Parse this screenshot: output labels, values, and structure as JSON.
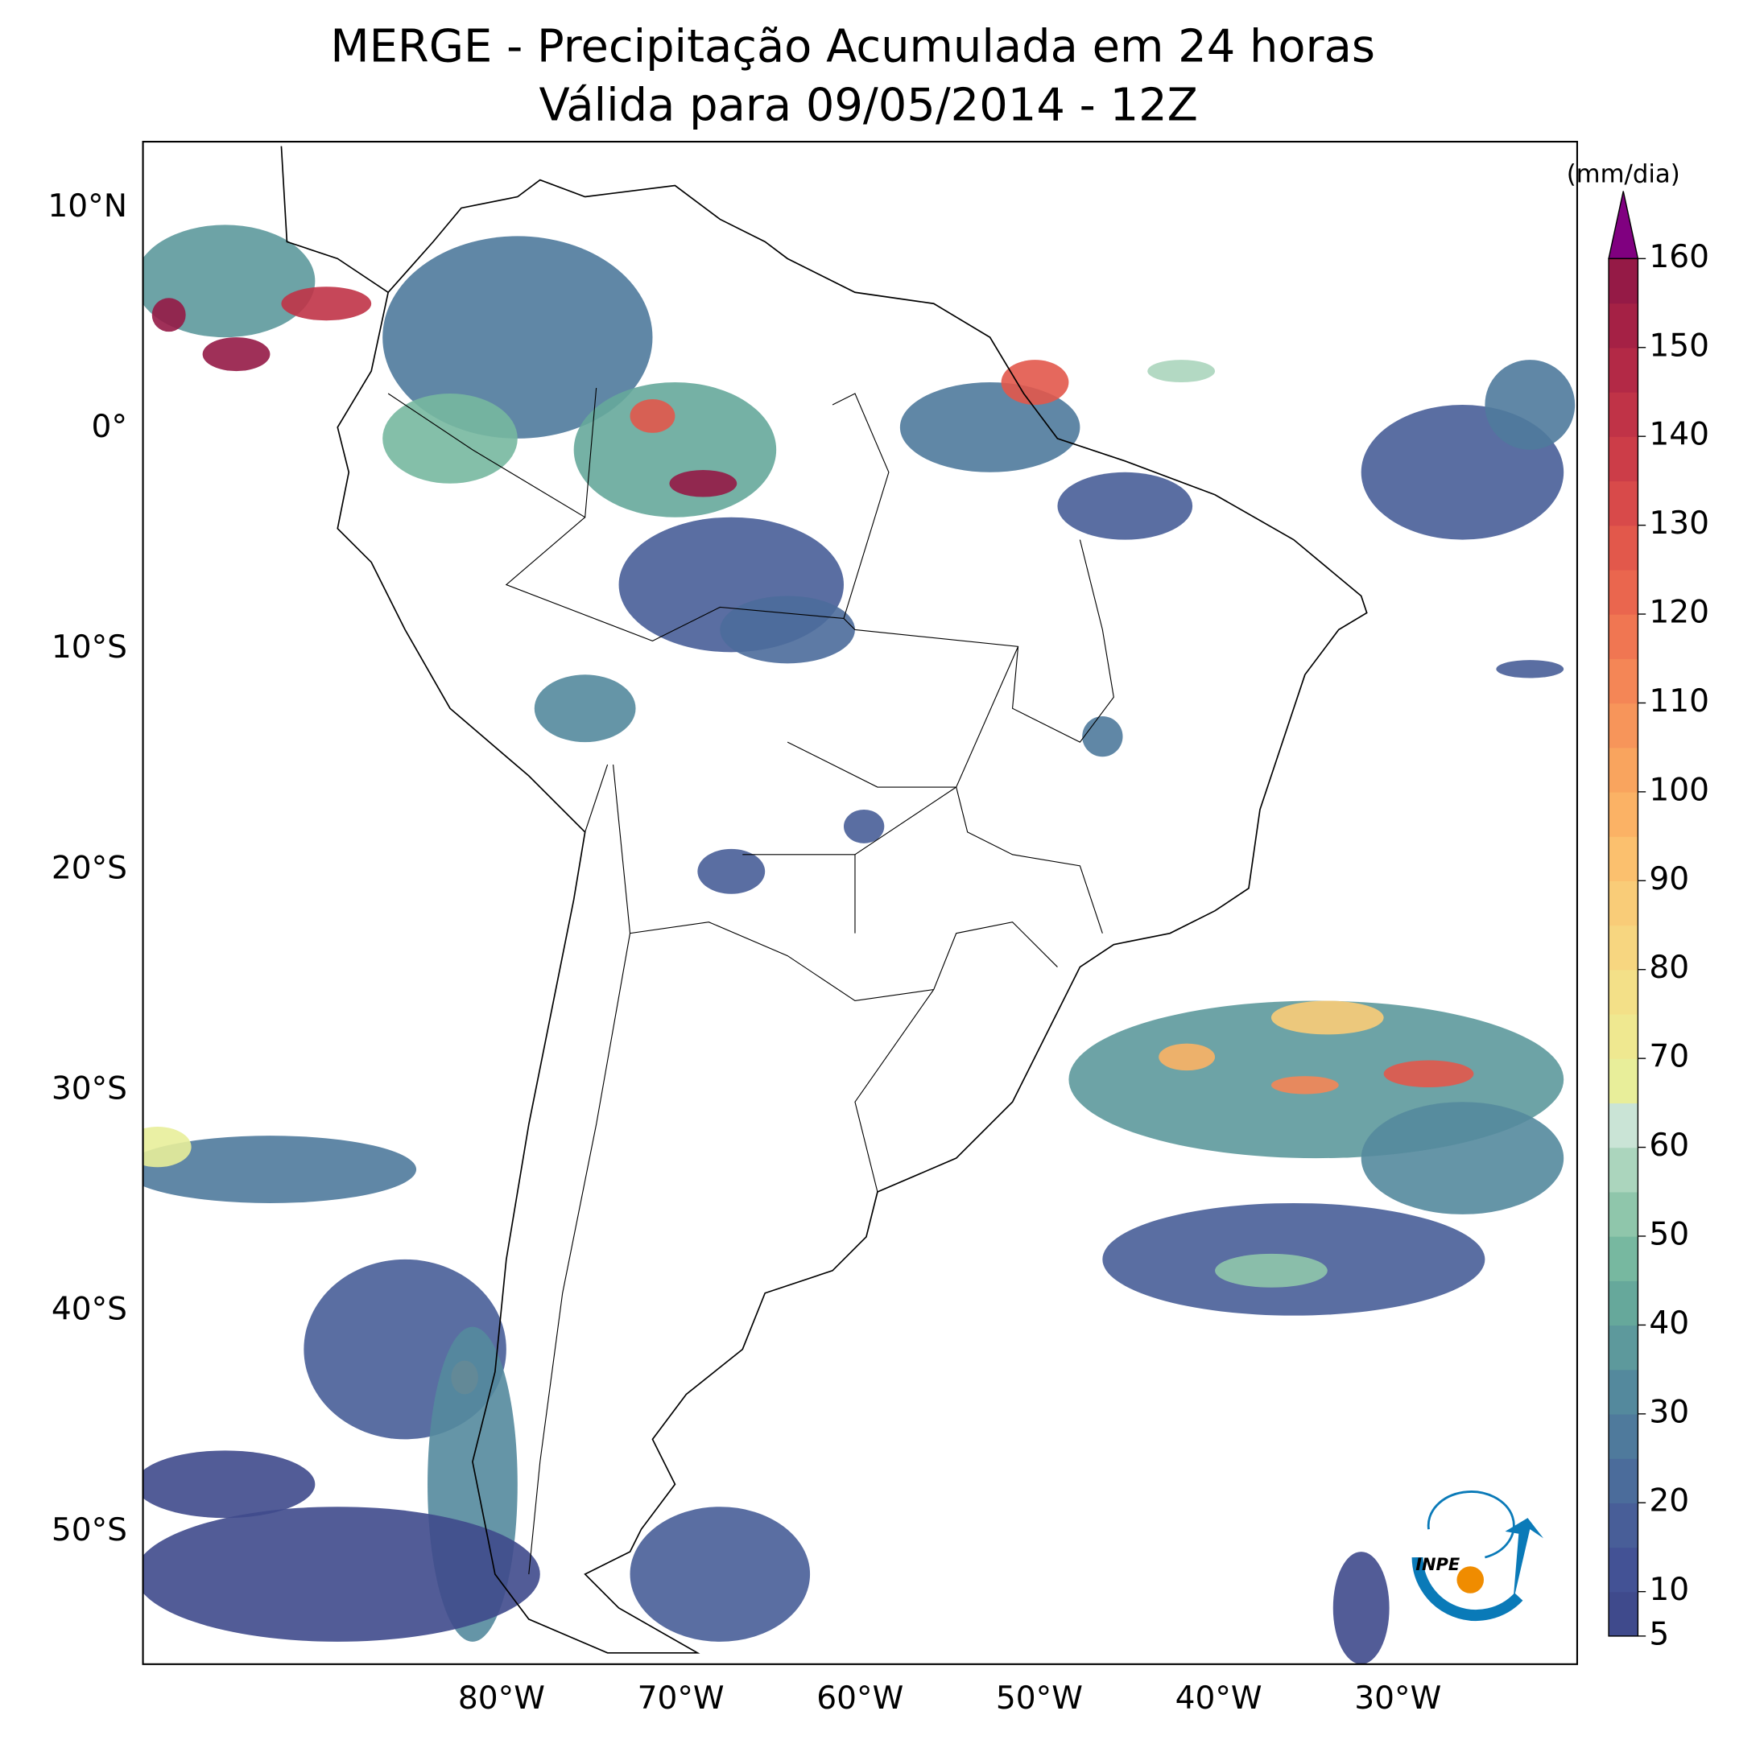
{
  "title": [
    "MERGE - Precipitação Acumulada em 24 horas",
    "Válida para 09/05/2014 - 12Z"
  ],
  "map": {
    "lonlim": [
      -100,
      -20
    ],
    "latlim": [
      -56,
      13
    ],
    "xticks": [
      {
        "value": -80,
        "label": "80°W"
      },
      {
        "value": -70,
        "label": "70°W"
      },
      {
        "value": -60,
        "label": "60°W"
      },
      {
        "value": -50,
        "label": "50°W"
      },
      {
        "value": -40,
        "label": "40°W"
      },
      {
        "value": -30,
        "label": "30°W"
      }
    ],
    "yticks": [
      {
        "value": 10,
        "label": "10°N"
      },
      {
        "value": 0,
        "label": "0°"
      },
      {
        "value": -10,
        "label": "10°S"
      },
      {
        "value": -20,
        "label": "20°S"
      },
      {
        "value": -30,
        "label": "30°S"
      },
      {
        "value": -40,
        "label": "40°S"
      },
      {
        "value": -50,
        "label": "50°S"
      }
    ]
  },
  "colorbar": {
    "label": "(mm/dia)",
    "lim": [
      5,
      160
    ],
    "ticks": [
      5,
      10,
      20,
      30,
      40,
      50,
      60,
      70,
      80,
      90,
      100,
      110,
      120,
      130,
      140,
      150,
      160
    ],
    "colors": [
      "#3f4a8c",
      "#435295",
      "#485e98",
      "#4b6c9b",
      "#4f7a9c",
      "#54899d",
      "#5d999c",
      "#66a89b",
      "#77b8a0",
      "#8fc6ab",
      "#abd5bd",
      "#cae4d6",
      "#e8ee9a",
      "#efe890",
      "#f3e088",
      "#f7d680",
      "#f9cc78",
      "#fbc06e",
      "#fbb265",
      "#f9a45e",
      "#f7955a",
      "#f48656",
      "#f07652",
      "#ea664e",
      "#e2584b",
      "#d84a4a",
      "#cc3d48",
      "#c03347",
      "#b32946",
      "#a52145",
      "#951a46"
    ],
    "extend_color": "#800080"
  },
  "logo": "INPE"
}
